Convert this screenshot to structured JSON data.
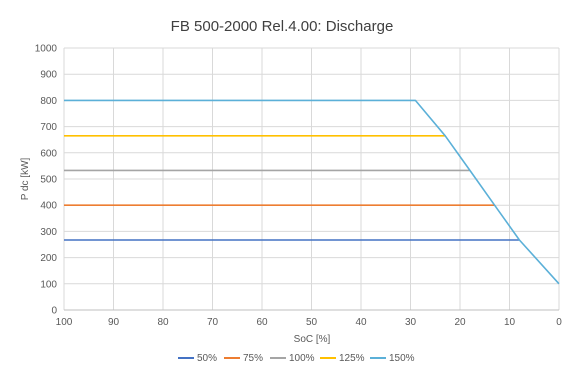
{
  "chart_data": {
    "type": "line",
    "title": "FB 500-2000 Rel.4.00: Discharge",
    "xlabel": "SoC [%]",
    "ylabel": "P dc [kW]",
    "xlim": [
      100,
      0
    ],
    "ylim": [
      0,
      1000
    ],
    "x_ticks": [
      "100",
      "90",
      "80",
      "70",
      "60",
      "50",
      "40",
      "30",
      "20",
      "10",
      "0"
    ],
    "y_ticks": [
      "0",
      "100",
      "200",
      "300",
      "400",
      "500",
      "600",
      "700",
      "800",
      "900",
      "1000"
    ],
    "grid": true,
    "legend_position": "bottom",
    "series": [
      {
        "name": "50%",
        "color": "#4472C4",
        "x": [
          100,
          8
        ],
        "y": [
          267,
          267
        ]
      },
      {
        "name": "75%",
        "color": "#ED7D31",
        "x": [
          100,
          13
        ],
        "y": [
          400,
          400
        ]
      },
      {
        "name": "100%",
        "color": "#A5A5A5",
        "x": [
          100,
          18
        ],
        "y": [
          533,
          533
        ]
      },
      {
        "name": "125%",
        "color": "#FFC000",
        "x": [
          100,
          23
        ],
        "y": [
          665,
          665
        ]
      },
      {
        "name": "150%",
        "color": "#5BB0D8",
        "x": [
          100,
          29,
          23,
          18,
          13,
          8,
          0
        ],
        "y": [
          800,
          800,
          665,
          533,
          400,
          267,
          100
        ]
      }
    ]
  }
}
